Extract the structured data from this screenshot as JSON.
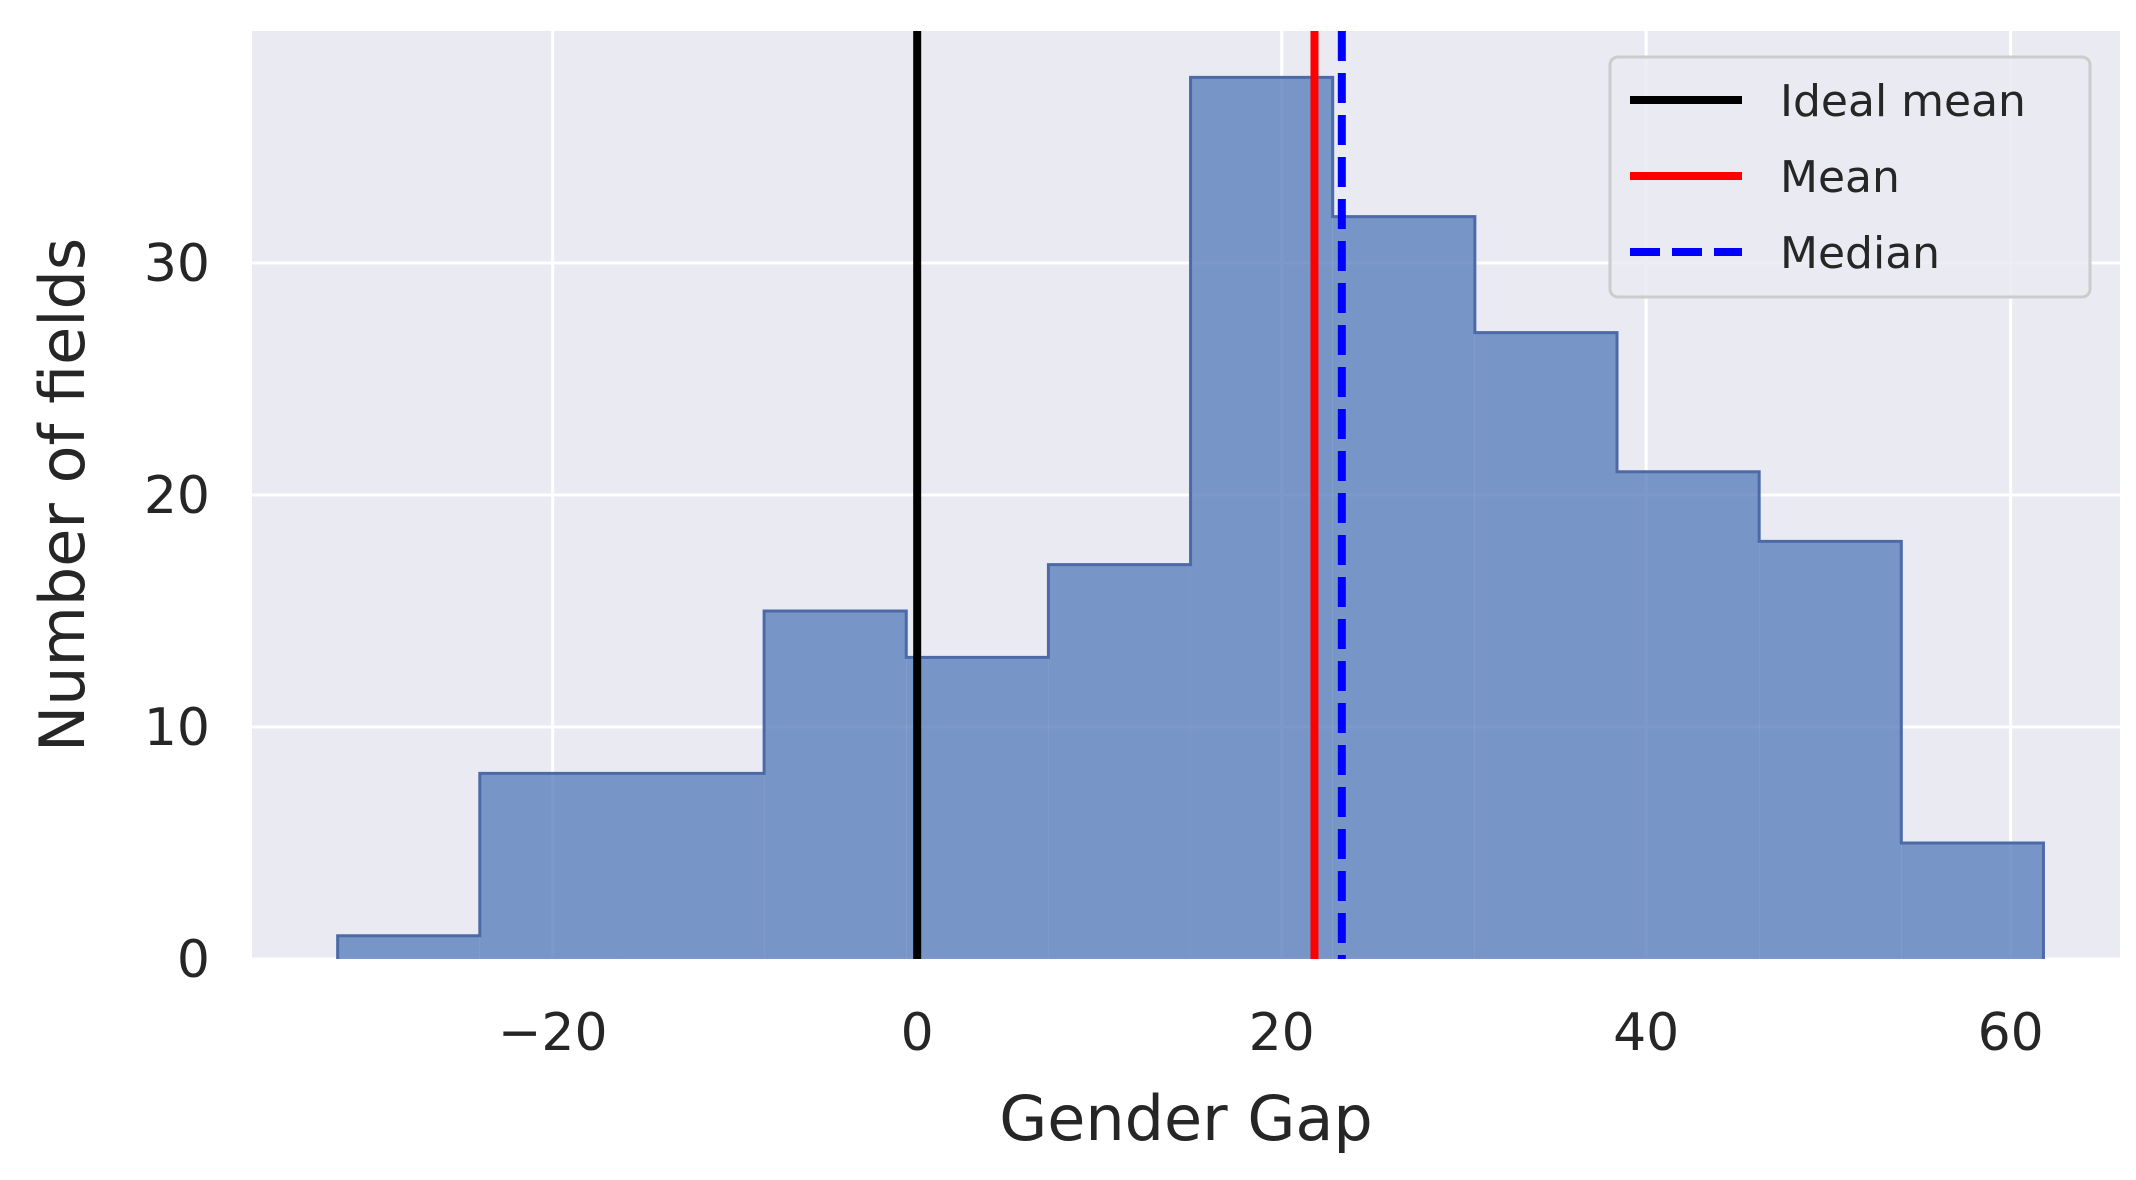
{
  "chart_data": {
    "type": "histogram",
    "xlabel": "Gender Gap",
    "ylabel": "Number of fields",
    "xlim": [
      -36.5,
      66
    ],
    "ylim": [
      0,
      40
    ],
    "xticks": [
      -20,
      0,
      20,
      40,
      60
    ],
    "xtick_labels": [
      "−20",
      "0",
      "20",
      "40",
      "60"
    ],
    "yticks": [
      0,
      10,
      20,
      30
    ],
    "ytick_labels": [
      "0",
      "10",
      "20",
      "30"
    ],
    "grid": true,
    "bin_edges": [
      -31.8,
      -24.0,
      -16.2,
      -8.4,
      -0.6,
      7.2,
      15.0,
      22.8,
      30.6,
      38.4,
      46.2,
      54.0,
      61.8
    ],
    "counts": [
      1,
      8,
      8,
      15,
      13,
      17,
      38,
      32,
      27,
      21,
      18,
      5
    ],
    "bar_color": "#5b7fbb",
    "edge_color": "#4c6aa8",
    "reference_lines": [
      {
        "name": "Ideal mean",
        "x": 0,
        "color": "#000000",
        "style": "solid"
      },
      {
        "name": "Mean",
        "x": 21.8,
        "color": "#ff0000",
        "style": "solid"
      },
      {
        "name": "Median",
        "x": 23.3,
        "color": "#0000ff",
        "style": "dashed"
      }
    ],
    "legend": {
      "position": "top-right",
      "entries": [
        {
          "label": "Ideal mean",
          "color": "#000000",
          "style": "solid"
        },
        {
          "label": "Mean",
          "color": "#ff0000",
          "style": "solid"
        },
        {
          "label": "Median",
          "color": "#0000ff",
          "style": "dashed"
        }
      ]
    },
    "background_color": "#eaeaf2"
  }
}
